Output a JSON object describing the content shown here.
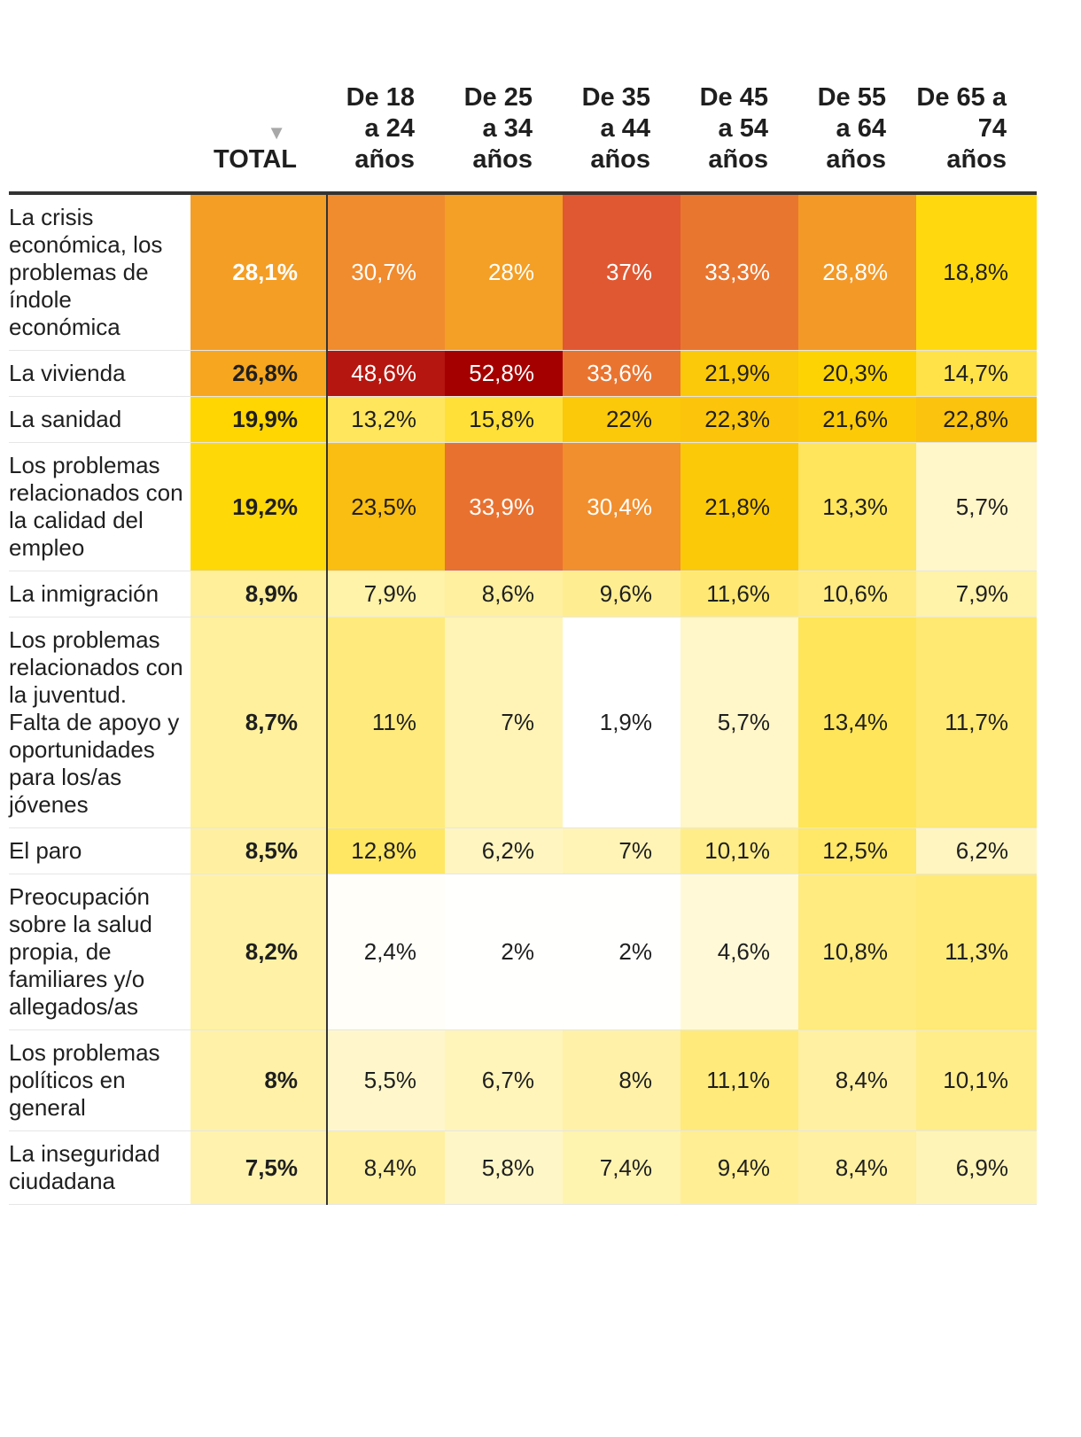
{
  "chart_data": {
    "type": "heatmap",
    "columns": [
      "TOTAL",
      "De 18 a 24 años",
      "De 25 a 34 años",
      "De 35 a 44 años",
      "De 45 a 54 años",
      "De 55 a 64 años",
      "De 65 a 74 años"
    ],
    "sorted_column": "TOTAL",
    "sort_order": "descending",
    "sort_indicator": "▼",
    "color_scale": [
      "#ffffff",
      "#ffd700",
      "#f2922d",
      "#dc4b33",
      "#a50000"
    ],
    "rows": [
      {
        "label": "La crisis económica, los problemas de índole económica",
        "values": [
          28.1,
          30.7,
          28,
          37,
          33.3,
          28.8,
          18.8
        ]
      },
      {
        "label": "La vivienda",
        "values": [
          26.8,
          48.6,
          52.8,
          33.6,
          21.9,
          20.3,
          14.7
        ]
      },
      {
        "label": "La sanidad",
        "values": [
          19.9,
          13.2,
          15.8,
          22,
          22.3,
          21.6,
          22.8
        ]
      },
      {
        "label": "Los problemas relacionados con la calidad del empleo",
        "values": [
          19.2,
          23.5,
          33.9,
          30.4,
          21.8,
          13.3,
          5.7
        ]
      },
      {
        "label": "La inmigración",
        "values": [
          8.9,
          7.9,
          8.6,
          9.6,
          11.6,
          10.6,
          7.9
        ]
      },
      {
        "label": "Los problemas relacionados con la juventud. Falta de apoyo y oportunidades para los/as jóvenes",
        "values": [
          8.7,
          11,
          7,
          1.9,
          5.7,
          13.4,
          11.7
        ]
      },
      {
        "label": "El paro",
        "values": [
          8.5,
          12.8,
          6.2,
          7,
          10.1,
          12.5,
          6.2
        ]
      },
      {
        "label": "Preocupación sobre la salud propia, de familiares y/o allegados/as",
        "values": [
          8.2,
          2.4,
          2,
          2,
          4.6,
          10.8,
          11.3
        ]
      },
      {
        "label": "Los problemas políticos en general",
        "values": [
          8,
          5.5,
          6.7,
          8,
          11.1,
          8.4,
          10.1
        ]
      },
      {
        "label": "La inseguridad ciudadana",
        "values": [
          7.5,
          8.4,
          5.8,
          7.4,
          9.4,
          8.4,
          6.9
        ]
      }
    ]
  }
}
